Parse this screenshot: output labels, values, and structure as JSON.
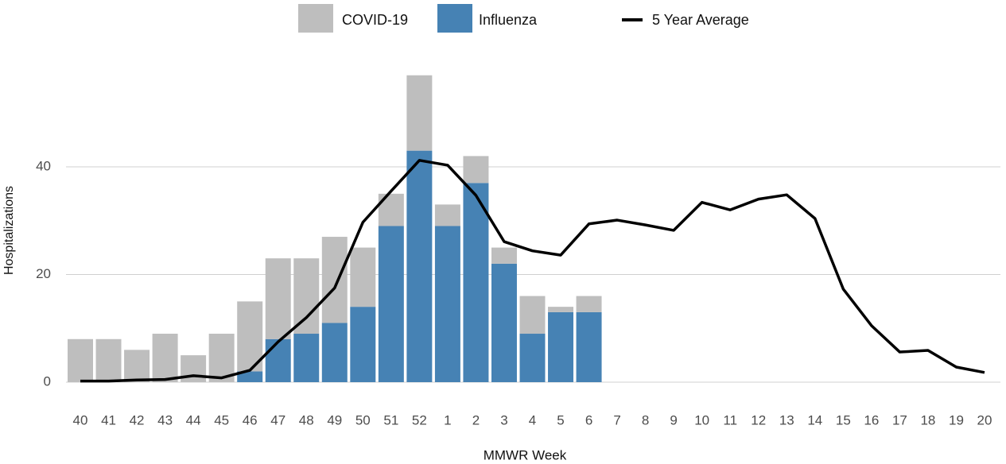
{
  "chart_data": {
    "type": "bar",
    "x_label": "MMWR Week",
    "y_label": "Hospitalizations",
    "categories": [
      "40",
      "41",
      "42",
      "43",
      "44",
      "45",
      "46",
      "47",
      "48",
      "49",
      "50",
      "51",
      "52",
      "1",
      "2",
      "3",
      "4",
      "5",
      "6",
      "7",
      "8",
      "9",
      "10",
      "11",
      "12",
      "13",
      "14",
      "15",
      "16",
      "17",
      "18",
      "19",
      "20"
    ],
    "series": [
      {
        "name": "COVID-19",
        "type": "bar",
        "color": "#bebebe",
        "values": [
          8,
          8,
          6,
          9,
          5,
          9,
          13,
          15,
          14,
          16,
          11,
          6,
          14,
          4,
          5,
          3,
          7,
          1,
          3,
          null,
          null,
          null,
          null,
          null,
          null,
          null,
          null,
          null,
          null,
          null,
          null,
          null,
          null
        ]
      },
      {
        "name": "Influenza",
        "type": "bar",
        "color": "#4682b4",
        "values": [
          0,
          0,
          0,
          0,
          0,
          0,
          2,
          8,
          9,
          11,
          14,
          29,
          43,
          29,
          37,
          22,
          9,
          13,
          13,
          null,
          null,
          null,
          null,
          null,
          null,
          null,
          null,
          null,
          null,
          null,
          null,
          null,
          null
        ]
      },
      {
        "name": "5 Year Average",
        "type": "line",
        "color": "#000000",
        "values": [
          0.2,
          0.2,
          0.4,
          0.5,
          1.2,
          0.8,
          2.2,
          7.5,
          12,
          17.5,
          29.7,
          35.5,
          41.2,
          40.3,
          34.7,
          26.1,
          24.4,
          23.6,
          29.4,
          30.1,
          29.2,
          28.2,
          33.4,
          32,
          34,
          34.8,
          30.4,
          17.3,
          10.5,
          5.6,
          5.9,
          2.8,
          1.8
        ]
      }
    ],
    "ylim": [
      0,
      58
    ],
    "yticks": [
      0,
      20,
      40
    ],
    "grid": true,
    "legend": "top"
  }
}
